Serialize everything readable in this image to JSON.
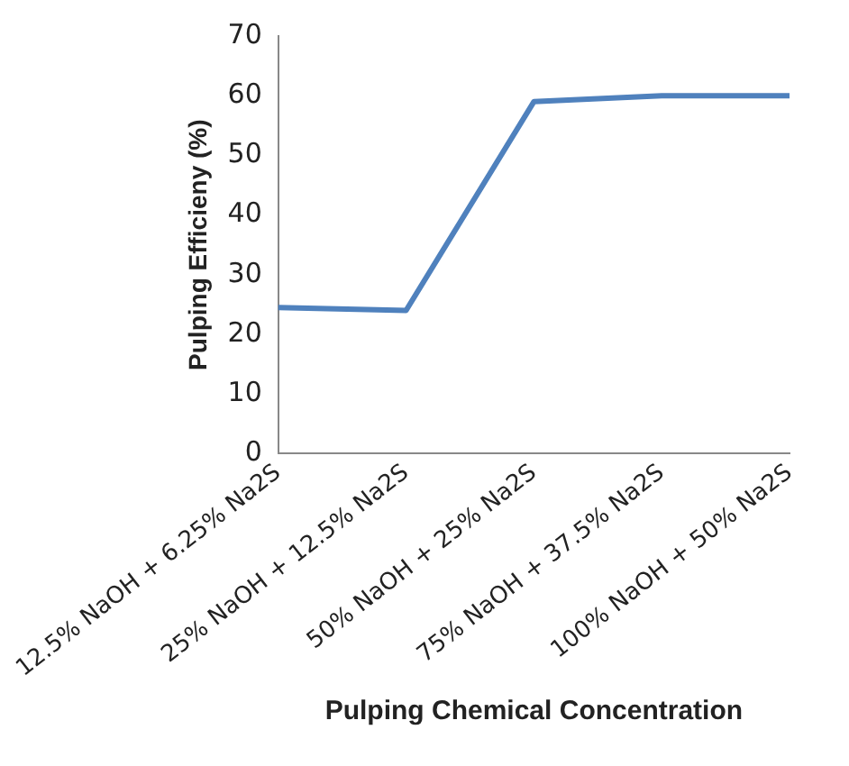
{
  "chart_data": {
    "type": "line",
    "xlabel": "Pulping Chemical Concentration",
    "ylabel": "Pulping Efficieny (%)",
    "categories": [
      "12.5% NaOH + 6.25% Na2S",
      "25% NaOH + 12.5% Na2S",
      "50% NaOH + 25% Na2S",
      "75% NaOH + 37.5% Na2S",
      "100% NaOH + 50% Na2S"
    ],
    "series": [
      {
        "color": "#4f81bd",
        "values": [
          24.5,
          24,
          59,
          60,
          60
        ]
      }
    ],
    "ylim": [
      0,
      70
    ],
    "yticks": [
      0,
      10,
      20,
      30,
      40,
      50,
      60,
      70
    ],
    "grid": false,
    "legend": false,
    "marker": "none",
    "line_style": "solid"
  }
}
